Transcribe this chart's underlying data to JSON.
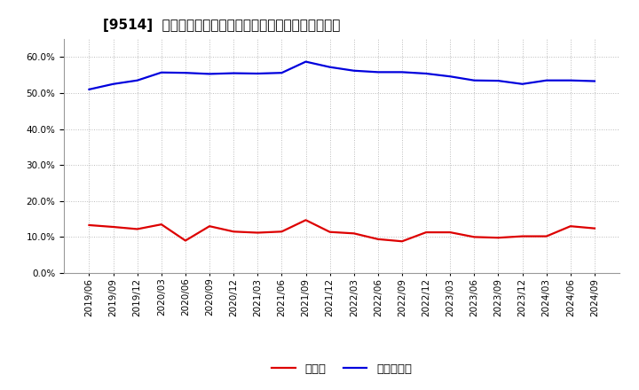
{
  "title": "[9514]  現預金、有利子負債の総資産に対する比率の推移",
  "x_labels": [
    "2019/06",
    "2019/09",
    "2019/12",
    "2020/03",
    "2020/06",
    "2020/09",
    "2020/12",
    "2021/03",
    "2021/06",
    "2021/09",
    "2021/12",
    "2022/03",
    "2022/06",
    "2022/09",
    "2022/12",
    "2023/03",
    "2023/06",
    "2023/09",
    "2023/12",
    "2024/03",
    "2024/06",
    "2024/09"
  ],
  "cash": [
    0.133,
    0.128,
    0.122,
    0.135,
    0.09,
    0.13,
    0.115,
    0.112,
    0.115,
    0.147,
    0.114,
    0.11,
    0.094,
    0.088,
    0.113,
    0.113,
    0.1,
    0.098,
    0.102,
    0.102,
    0.13,
    0.124
  ],
  "debt": [
    0.51,
    0.525,
    0.535,
    0.557,
    0.556,
    0.553,
    0.555,
    0.554,
    0.556,
    0.587,
    0.572,
    0.562,
    0.558,
    0.558,
    0.554,
    0.546,
    0.535,
    0.534,
    0.525,
    0.535,
    0.535,
    0.533
  ],
  "cash_color": "#dd0000",
  "debt_color": "#0000dd",
  "background_color": "#ffffff",
  "grid_color": "#bbbbbb",
  "ylim": [
    0.0,
    0.65
  ],
  "yticks": [
    0.0,
    0.1,
    0.2,
    0.3,
    0.4,
    0.5,
    0.6
  ],
  "legend_cash": "現預金",
  "legend_debt": "有利子負債",
  "title_fontsize": 11,
  "axis_fontsize": 7.5,
  "legend_fontsize": 9.5
}
